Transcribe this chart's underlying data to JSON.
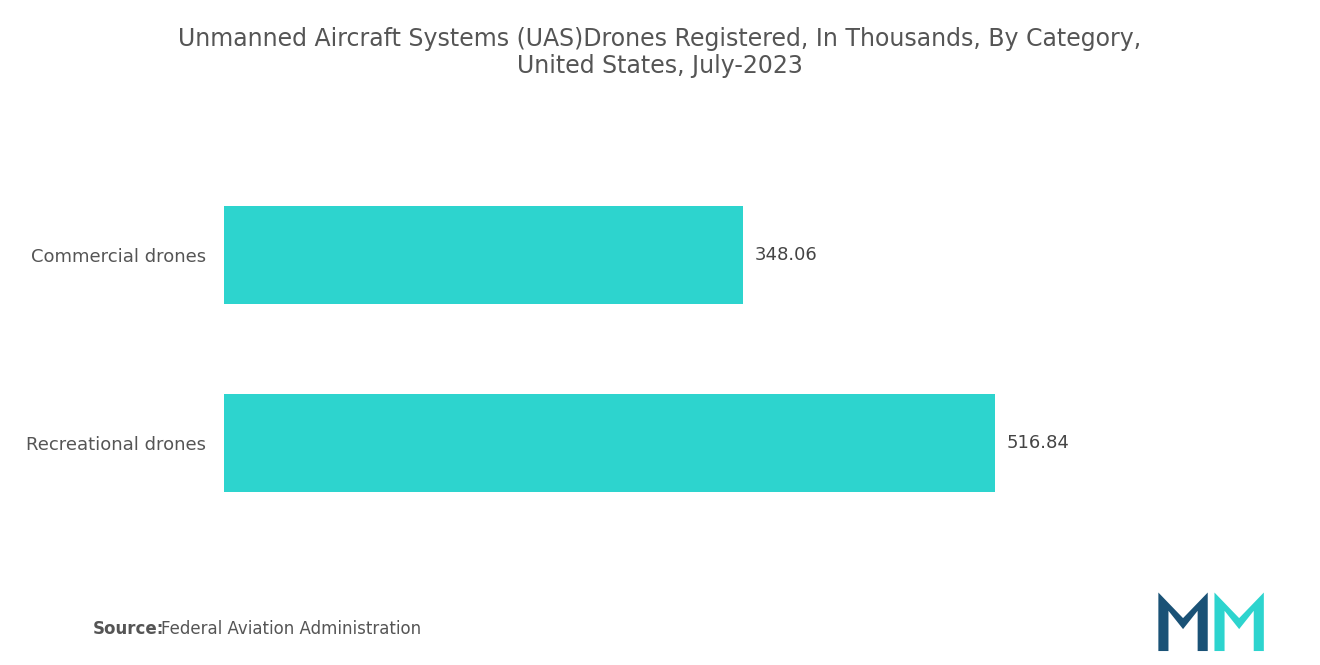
{
  "title": "Unmanned Aircraft Systems (UAS)Drones Registered, In Thousands, By Category,\nUnited States, July-2023",
  "categories": [
    "Commercial drones",
    "Recreational drones"
  ],
  "values": [
    348.06,
    516.84
  ],
  "bar_color": "#2DD4CE",
  "value_labels": [
    "348.06",
    "516.84"
  ],
  "source_bold": "Source:",
  "source_text": "Federal Aviation Administration",
  "background_color": "#ffffff",
  "title_color": "#555555",
  "label_color": "#555555",
  "value_color": "#444444",
  "source_color": "#555555",
  "xlim": [
    0,
    620
  ],
  "bar_height": 0.52,
  "title_fontsize": 17,
  "label_fontsize": 13,
  "value_fontsize": 13,
  "source_fontsize": 12
}
